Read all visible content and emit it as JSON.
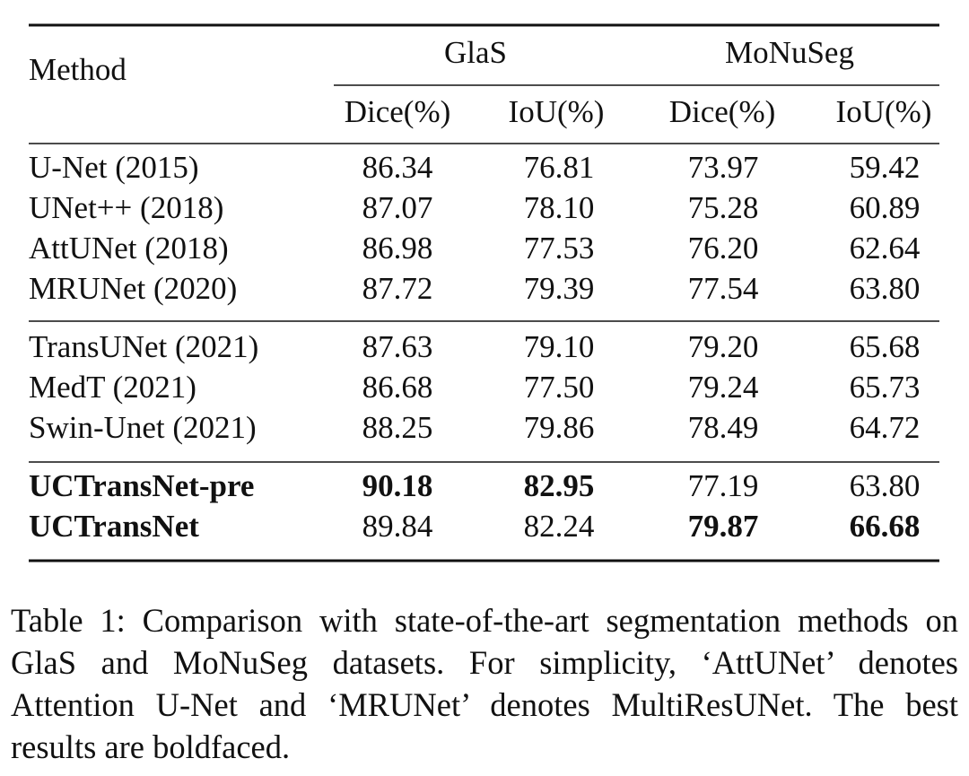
{
  "table": {
    "header": {
      "method": "Method",
      "groups": [
        "GlaS",
        "MoNuSeg"
      ],
      "metrics": [
        "Dice(%)",
        "IoU(%)",
        "Dice(%)",
        "IoU(%)"
      ]
    },
    "rows": [
      {
        "method": "U-Net (2015)",
        "values": [
          "86.34",
          "76.81",
          "73.97",
          "59.42"
        ]
      },
      {
        "method": "UNet++ (2018)",
        "values": [
          "87.07",
          "78.10",
          "75.28",
          "60.89"
        ]
      },
      {
        "method": "AttUNet (2018)",
        "values": [
          "86.98",
          "77.53",
          "76.20",
          "62.64"
        ]
      },
      {
        "method": "MRUNet (2020)",
        "values": [
          "87.72",
          "79.39",
          "77.54",
          "63.80"
        ]
      },
      {
        "method": "TransUNet (2021)",
        "values": [
          "87.63",
          "79.10",
          "79.20",
          "65.68"
        ]
      },
      {
        "method": "MedT (2021)",
        "values": [
          "86.68",
          "77.50",
          "79.24",
          "65.73"
        ]
      },
      {
        "method": "Swin-Unet (2021)",
        "values": [
          "88.25",
          "79.86",
          "78.49",
          "64.72"
        ]
      },
      {
        "method": "UCTransNet-pre",
        "values": [
          "90.18",
          "82.95",
          "77.19",
          "63.80"
        ]
      },
      {
        "method": "UCTransNet",
        "values": [
          "89.84",
          "82.24",
          "79.87",
          "66.68"
        ]
      }
    ]
  },
  "caption": "Table 1: Comparison with state-of-the-art segmentation methods on GlaS and MoNuSeg datasets. For simplicity, ‘AttUNet’ denotes Attention U-Net and ‘MRUNet’ denotes MultiResUNet. The best results are boldfaced."
}
